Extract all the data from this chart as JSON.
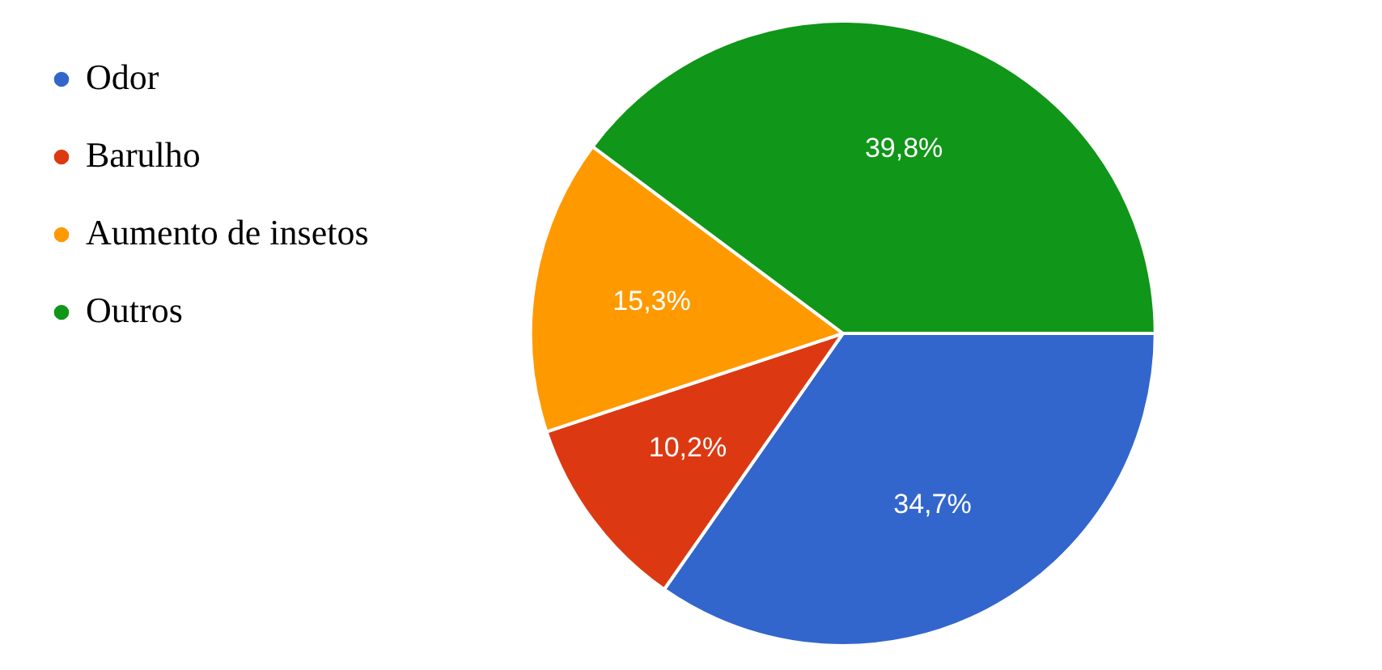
{
  "chart_data": {
    "type": "pie",
    "categories": [
      "Odor",
      "Barulho",
      "Aumento de insetos",
      "Outros"
    ],
    "values": [
      34.7,
      10.2,
      15.3,
      39.8
    ],
    "value_labels": [
      "34,7%",
      "10,2%",
      "15,3%",
      "39,8%"
    ],
    "colors": [
      "#3366cc",
      "#dc3912",
      "#ff9900",
      "#109618"
    ],
    "legend": "top left"
  }
}
